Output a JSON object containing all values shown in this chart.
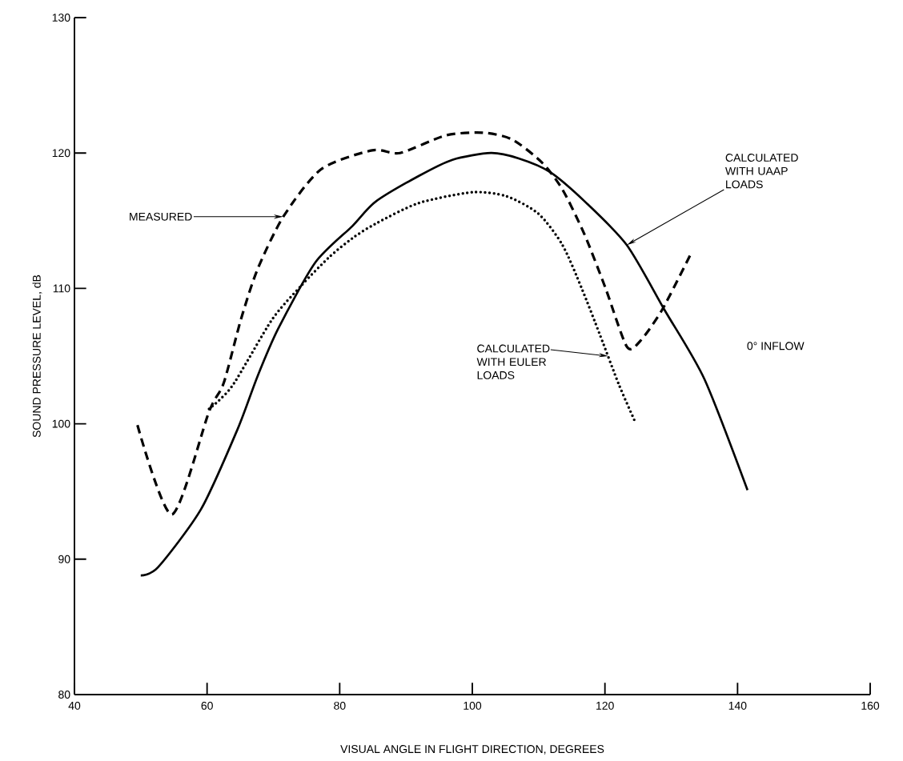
{
  "chart_data": {
    "type": "line",
    "xlabel": "VISUAL ANGLE IN FLIGHT DIRECTION, DEGREES",
    "ylabel": "SOUND PRESSURE LEVEL, dB",
    "xlim": [
      40,
      160
    ],
    "xticks": [
      40,
      60,
      80,
      100,
      120,
      140,
      160
    ],
    "ylim": [
      80,
      130
    ],
    "yticks": [
      80,
      90,
      100,
      110,
      120,
      130
    ],
    "grid": false,
    "marker": "none",
    "series": [
      {
        "color": "#000000",
        "line_style": "dashed",
        "x": [
          49.5,
          54.7,
          60.3,
          62.5,
          65.1,
          67.6,
          71.5,
          77.2,
          84.9,
          89.1,
          96,
          101.6,
          106,
          110.5,
          113.6,
          116.9,
          120.1,
          123.3,
          125.3,
          128.6,
          132.9
        ],
        "values": [
          99.9,
          93.3,
          100.9,
          103,
          107.7,
          111.4,
          115.3,
          118.8,
          120.2,
          120,
          121.3,
          121.5,
          121,
          119.3,
          117.3,
          114,
          110,
          105.7,
          106.1,
          108.4,
          112.5
        ]
      },
      {
        "color": "#000000",
        "line_style": "solid",
        "x": [
          50,
          52.6,
          59.1,
          64.6,
          67.6,
          70.7,
          76.3,
          81.9,
          85.4,
          91.9,
          97,
          102.8,
          107,
          111.7,
          117,
          123.3,
          129,
          135,
          141.5
        ],
        "values": [
          88.8,
          89.4,
          93.7,
          99.6,
          103.5,
          107,
          111.9,
          114.6,
          116.4,
          118.3,
          119.5,
          120,
          119.6,
          118.6,
          116.4,
          113.2,
          108.4,
          103.3,
          95.1
        ]
      },
      {
        "color": "#000000",
        "line_style": "dotted",
        "x": [
          60.3,
          63.8,
          69.8,
          74.2,
          78.4,
          81.9,
          85.5,
          91.9,
          100,
          105.2,
          110,
          113.6,
          116.5,
          119.3,
          122.1,
          124.5
        ],
        "values": [
          101.1,
          102.8,
          107.7,
          110.2,
          112.3,
          113.7,
          114.8,
          116.3,
          117.1,
          116.8,
          115.5,
          113.2,
          110,
          106.5,
          102.9,
          100.2
        ]
      }
    ],
    "annotations": [
      {
        "text": "MEASURED",
        "x": 71.5,
        "y": 115.3
      },
      {
        "text": "CALCULATED WITH UAAP LOADS",
        "x": 123.3,
        "y": 113.2
      },
      {
        "text": "CALCULATED WITH EULER LOADS",
        "x": 120.5,
        "y": 105
      },
      "0° INFLOW"
    ]
  }
}
